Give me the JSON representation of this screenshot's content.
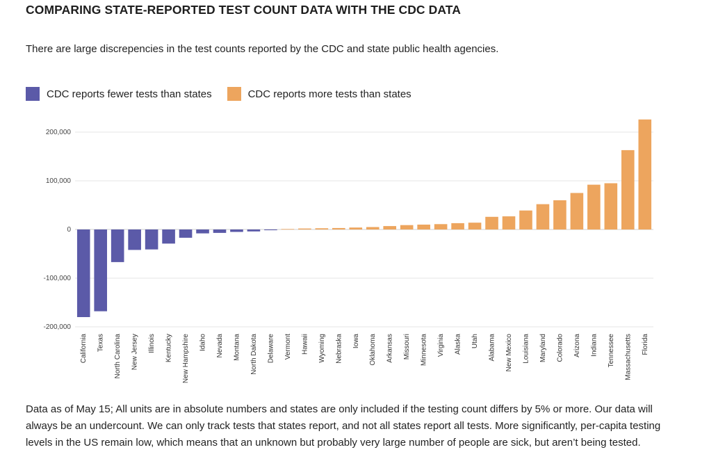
{
  "title": "COMPARING STATE-REPORTED TEST COUNT DATA WITH THE CDC DATA",
  "subtitle": "There are large discrepencies in the test counts reported by the CDC and state public health agencies.",
  "legend": [
    {
      "label": "CDC reports fewer tests than states",
      "color": "#5b5aa8"
    },
    {
      "label": "CDC reports more tests than states",
      "color": "#eda55e"
    }
  ],
  "footnote": "Data as of May 15; All units are in absolute numbers and states are only included if the testing count differs by 5% or more. Our data will always be an undercount. We can only track tests that states report, and not all states report all tests. More significantly, per-capita testing levels in the US remain low, which means that an unknown but probably very large number of people are sick, but aren’t being tested.",
  "chart_data": {
    "type": "bar",
    "title": "COMPARING STATE-REPORTED TEST COUNT DATA WITH THE CDC DATA",
    "xlabel": "",
    "ylabel": "",
    "ylim": [
      -200000,
      225000
    ],
    "yticks": [
      -200000,
      -100000,
      0,
      100000,
      200000
    ],
    "ytick_labels": [
      "-200,000",
      "-100,000",
      "0",
      "100,000",
      "200,000"
    ],
    "grid": true,
    "legend_position": "top-left",
    "colors": {
      "negative": "#5b5aa8",
      "positive": "#eda55e"
    },
    "categories": [
      "California",
      "Texas",
      "North Carolina",
      "New Jersey",
      "Illinois",
      "Kentucky",
      "New Hampshire",
      "Idaho",
      "Nevada",
      "Montana",
      "North Dakota",
      "Delaware",
      "Vermont",
      "Hawaii",
      "Wyoming",
      "Nebraska",
      "Iowa",
      "Oklahoma",
      "Arkansas",
      "Missouri",
      "Minnesota",
      "Virginia",
      "Alaska",
      "Utah",
      "Alabama",
      "New Mexico",
      "Louisiana",
      "Maryland",
      "Colorado",
      "Arizona",
      "Indiana",
      "Tennessee",
      "Massachusetts",
      "Florida"
    ],
    "values": [
      -180000,
      -168000,
      -67000,
      -42000,
      -41000,
      -29000,
      -17000,
      -8000,
      -7000,
      -5000,
      -4000,
      -1500,
      1000,
      2000,
      2500,
      3000,
      4000,
      5000,
      7000,
      9000,
      10000,
      11000,
      13000,
      14000,
      26000,
      27000,
      39000,
      52000,
      60000,
      75000,
      92000,
      95000,
      163000,
      226000
    ]
  }
}
